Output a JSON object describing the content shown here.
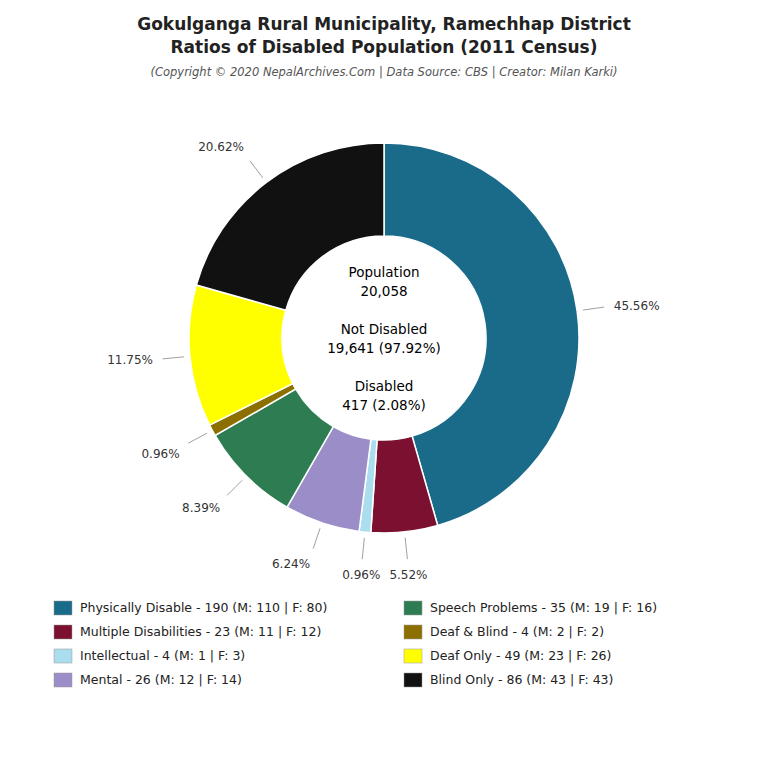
{
  "chart_data": {
    "type": "pie",
    "title": [
      "Gokulganga Rural Municipality, Ramechhap District",
      "Ratios of Disabled Population (2011 Census)"
    ],
    "subtitle": "(Copyright © 2020 NepalArchives.Com | Data Source: CBS | Creator: Milan Karki)",
    "categories": [
      "Physically Disable - 190 (M: 110 | F: 80)",
      "Multiple Disabilities - 23 (M: 11 | F: 12)",
      "Intellectual - 4 (M: 1 | F: 3)",
      "Mental - 26 (M: 12 | F: 14)",
      "Speech Problems - 35 (M: 19 | F: 16)",
      "Deaf & Blind - 4 (M: 2 | F: 2)",
      "Deaf Only - 49 (M: 23 | F: 26)",
      "Blind Only - 86 (M: 43 | F: 43)"
    ],
    "values": [
      45.56,
      5.52,
      0.96,
      6.24,
      8.39,
      0.96,
      11.75,
      20.62
    ],
    "value_labels": [
      "45.56%",
      "5.52%",
      "0.96%",
      "6.24%",
      "8.39%",
      "0.96%",
      "11.75%",
      "20.62%"
    ],
    "colors": [
      "#1a6b8a",
      "#7b1030",
      "#aaddee",
      "#9b8dc8",
      "#2e7d52",
      "#8b7000",
      "#ffff00",
      "#111111"
    ],
    "data_labels": true,
    "legend": "bottom",
    "annotations": [
      "Population\n20,058",
      "Not Disabled\n19,641 (97.92%)",
      "Disabled\n417 (2.08%)"
    ]
  }
}
